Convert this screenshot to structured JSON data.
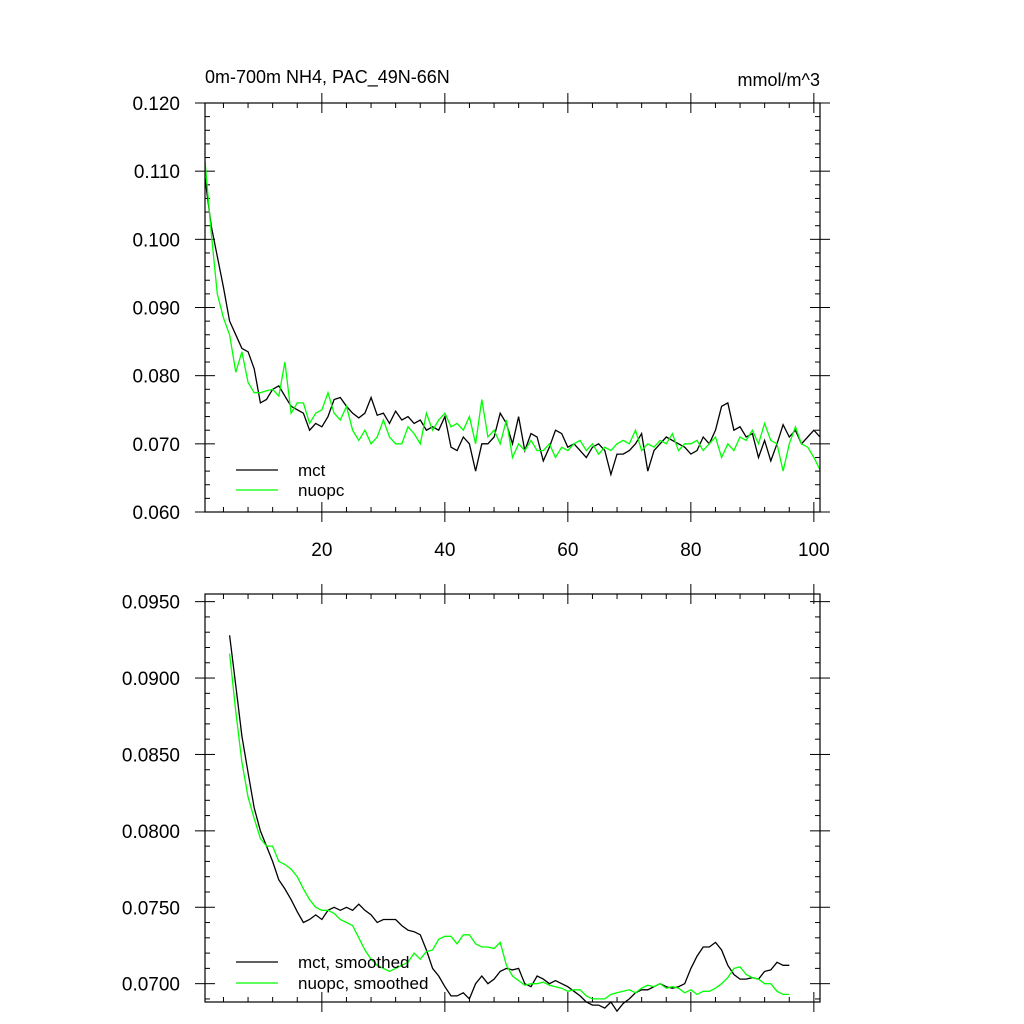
{
  "chart_data": [
    {
      "type": "line",
      "title": "0m-700m NH4, PAC_49N-66N",
      "units": "mmol/m^3",
      "xlim": [
        1,
        101
      ],
      "ylim": [
        0.06,
        0.12
      ],
      "xticks": [
        20,
        40,
        60,
        80,
        100
      ],
      "xtick_labels": [
        "20",
        "40",
        "60",
        "80",
        "100"
      ],
      "yticks": [
        0.06,
        0.07,
        0.08,
        0.09,
        0.1,
        0.11,
        0.12
      ],
      "ytick_labels": [
        "0.060",
        "0.070",
        "0.080",
        "0.090",
        "0.100",
        "0.110",
        "0.120"
      ],
      "legend_position": "bottom-left",
      "x_start": 1,
      "series": [
        {
          "name": "mct",
          "color": "#000000",
          "values": [
            0.109,
            0.102,
            0.0975,
            0.093,
            0.088,
            0.086,
            0.084,
            0.0835,
            0.081,
            0.076,
            0.0765,
            0.078,
            0.0785,
            0.077,
            0.0755,
            0.075,
            0.0745,
            0.072,
            0.073,
            0.0725,
            0.074,
            0.0765,
            0.0768,
            0.0755,
            0.0745,
            0.0738,
            0.0745,
            0.0768,
            0.0742,
            0.0745,
            0.073,
            0.0748,
            0.0735,
            0.074,
            0.073,
            0.0735,
            0.072,
            0.0725,
            0.072,
            0.074,
            0.0695,
            0.069,
            0.071,
            0.07,
            0.066,
            0.07,
            0.07,
            0.071,
            0.0745,
            0.073,
            0.07,
            0.074,
            0.069,
            0.0715,
            0.071,
            0.0675,
            0.0695,
            0.072,
            0.0715,
            0.0695,
            0.07,
            0.069,
            0.068,
            0.0695,
            0.07,
            0.069,
            0.0655,
            0.0685,
            0.0685,
            0.069,
            0.07,
            0.0715,
            0.066,
            0.069,
            0.07,
            0.071,
            0.0705,
            0.07,
            0.0695,
            0.0685,
            0.069,
            0.071,
            0.07,
            0.072,
            0.0755,
            0.076,
            0.072,
            0.0725,
            0.071,
            0.0715,
            0.068,
            0.0705,
            0.0675,
            0.07,
            0.0728,
            0.071,
            0.072,
            0.07,
            0.071,
            0.072,
            0.071
          ]
        },
        {
          "name": "nuopc",
          "color": "#00ff00",
          "values": [
            0.1115,
            0.101,
            0.092,
            0.0885,
            0.086,
            0.0805,
            0.0835,
            0.079,
            0.0775,
            0.0775,
            0.0778,
            0.078,
            0.077,
            0.082,
            0.0745,
            0.076,
            0.076,
            0.073,
            0.0745,
            0.075,
            0.0775,
            0.0745,
            0.0735,
            0.0755,
            0.072,
            0.0705,
            0.072,
            0.07,
            0.071,
            0.0735,
            0.071,
            0.07,
            0.07,
            0.0725,
            0.0715,
            0.07,
            0.0745,
            0.072,
            0.0735,
            0.0745,
            0.0725,
            0.073,
            0.072,
            0.074,
            0.07,
            0.0765,
            0.071,
            0.072,
            0.07,
            0.0735,
            0.068,
            0.07,
            0.069,
            0.0705,
            0.069,
            0.069,
            0.07,
            0.068,
            0.0695,
            0.069,
            0.07,
            0.0705,
            0.069,
            0.07,
            0.0685,
            0.0695,
            0.069,
            0.07,
            0.0705,
            0.07,
            0.072,
            0.069,
            0.07,
            0.0695,
            0.0705,
            0.07,
            0.0715,
            0.069,
            0.07,
            0.07,
            0.0705,
            0.069,
            0.07,
            0.071,
            0.068,
            0.07,
            0.069,
            0.071,
            0.0705,
            0.072,
            0.07,
            0.073,
            0.0705,
            0.07,
            0.066,
            0.07,
            0.0725,
            0.07,
            0.0695,
            0.068,
            0.0662
          ]
        }
      ]
    },
    {
      "type": "line",
      "xlim": [
        1,
        101
      ],
      "ylim": [
        0.0688,
        0.0955
      ],
      "xticks": [
        20,
        40,
        60,
        80,
        100
      ],
      "xtick_labels": [
        "",
        "",
        "",
        "",
        ""
      ],
      "yticks": [
        0.07,
        0.075,
        0.08,
        0.085,
        0.09,
        0.095
      ],
      "ytick_labels": [
        "0.0700",
        "0.0750",
        "0.0800",
        "0.0850",
        "0.0900",
        "0.0950"
      ],
      "legend_position": "bottom-left",
      "x_start": 5,
      "series": [
        {
          "name": "mct, smoothed",
          "color": "#000000",
          "values": [
            0.0928,
            0.0895,
            0.0862,
            0.0838,
            0.0815,
            0.08,
            0.079,
            0.078,
            0.0768,
            0.0762,
            0.0755,
            0.0747,
            0.074,
            0.0742,
            0.0745,
            0.0742,
            0.0748,
            0.075,
            0.0748,
            0.075,
            0.0748,
            0.0752,
            0.0748,
            0.0745,
            0.074,
            0.0742,
            0.0742,
            0.0742,
            0.0738,
            0.0735,
            0.0734,
            0.0732,
            0.0722,
            0.071,
            0.0705,
            0.0698,
            0.0692,
            0.0692,
            0.0694,
            0.069,
            0.07,
            0.0705,
            0.07,
            0.0703,
            0.0708,
            0.071,
            0.0709,
            0.071,
            0.07,
            0.0698,
            0.0705,
            0.0703,
            0.07,
            0.0702,
            0.07,
            0.0698,
            0.0695,
            0.0692,
            0.0688,
            0.0686,
            0.0686,
            0.0684,
            0.0688,
            0.0682,
            0.0687,
            0.069,
            0.0694,
            0.0696,
            0.0696,
            0.0698,
            0.07,
            0.0698,
            0.0697,
            0.0698,
            0.07,
            0.071,
            0.0718,
            0.0724,
            0.0724,
            0.0727,
            0.0722,
            0.0712,
            0.0706,
            0.0703,
            0.0703,
            0.0704,
            0.0703,
            0.0708,
            0.0709,
            0.0714,
            0.0712,
            0.0712
          ]
        },
        {
          "name": "nuopc, smoothed",
          "color": "#00ff00",
          "values": [
            0.0916,
            0.0878,
            0.0845,
            0.0822,
            0.0808,
            0.0795,
            0.079,
            0.079,
            0.078,
            0.0778,
            0.0775,
            0.077,
            0.0762,
            0.0755,
            0.075,
            0.0748,
            0.0748,
            0.0746,
            0.0742,
            0.074,
            0.0738,
            0.073,
            0.0722,
            0.0716,
            0.0712,
            0.071,
            0.0708,
            0.071,
            0.0712,
            0.0714,
            0.072,
            0.0716,
            0.0721,
            0.0722,
            0.0729,
            0.0731,
            0.0731,
            0.0726,
            0.0732,
            0.0732,
            0.0726,
            0.0724,
            0.0724,
            0.0723,
            0.0727,
            0.0712,
            0.0705,
            0.0702,
            0.0699,
            0.07,
            0.07,
            0.0701,
            0.0699,
            0.0698,
            0.0697,
            0.0695,
            0.0696,
            0.0696,
            0.0692,
            0.069,
            0.069,
            0.069,
            0.0693,
            0.0694,
            0.0695,
            0.0696,
            0.0694,
            0.0697,
            0.0699,
            0.0698,
            0.07,
            0.0697,
            0.0698,
            0.0697,
            0.0694,
            0.0696,
            0.0693,
            0.0695,
            0.0695,
            0.0697,
            0.07,
            0.0704,
            0.071,
            0.0711,
            0.0706,
            0.0704,
            0.0703,
            0.07,
            0.07,
            0.0695,
            0.0693,
            0.0693
          ]
        }
      ]
    }
  ]
}
